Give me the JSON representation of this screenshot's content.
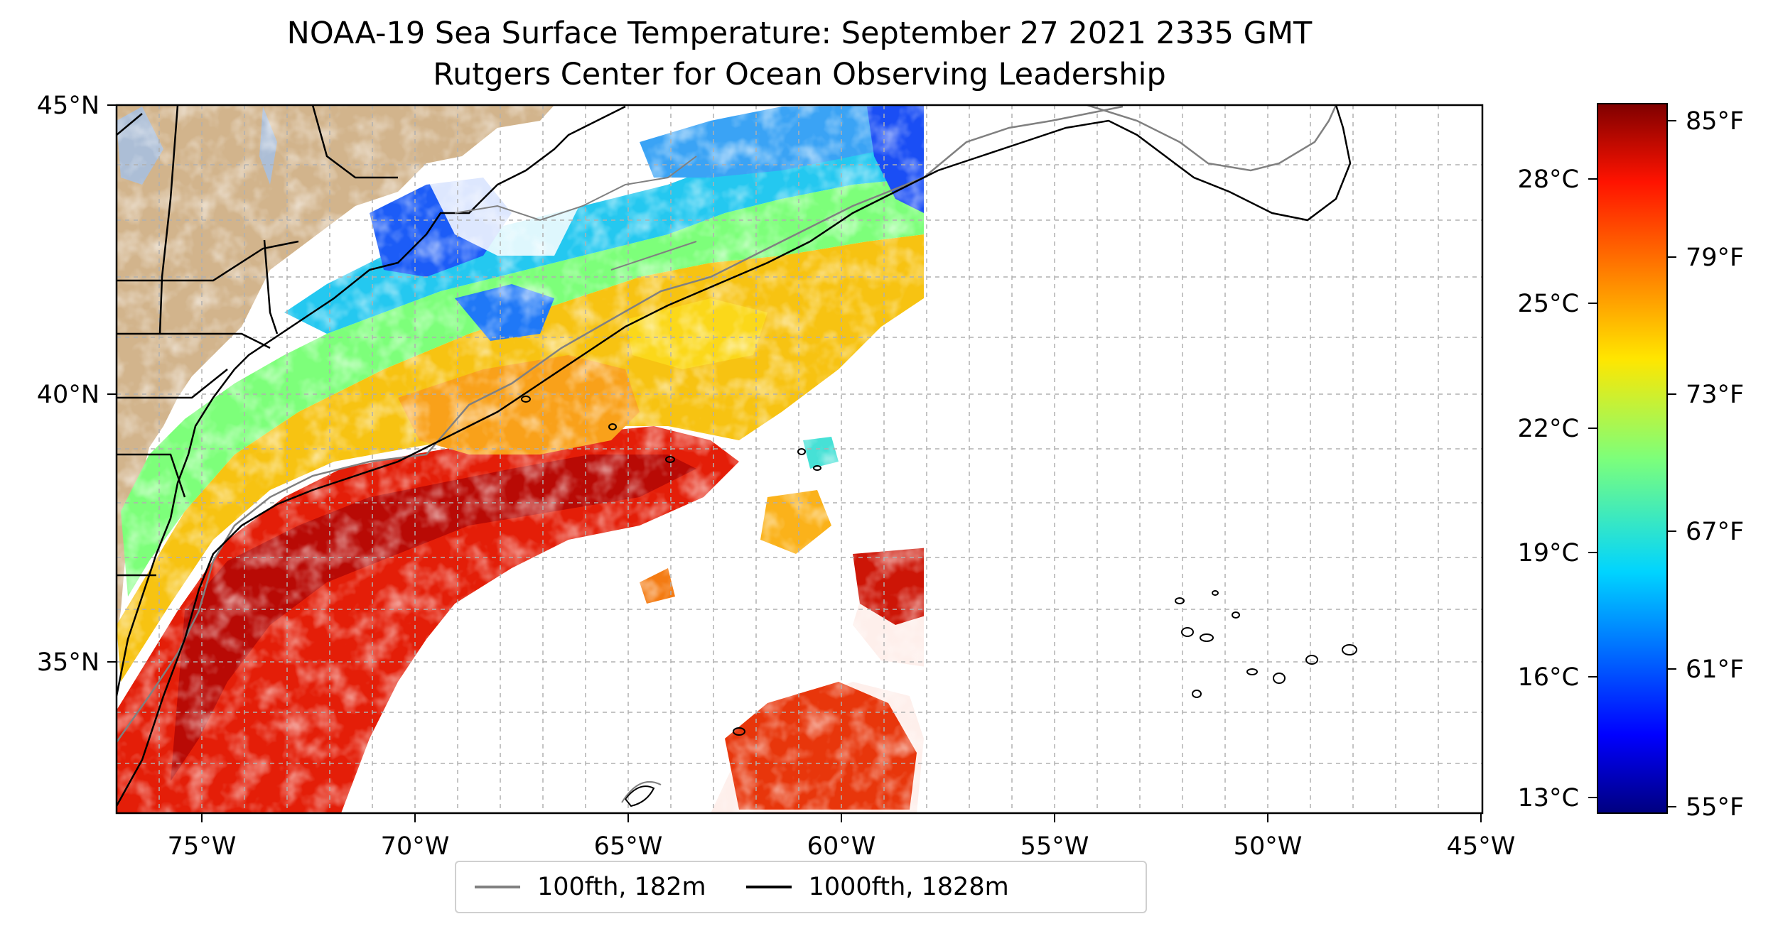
{
  "title": {
    "line1": "NOAA-19 Sea Surface Temperature: September 27 2021 2335 GMT",
    "line2": "Rutgers Center for Ocean Observing Leadership"
  },
  "map": {
    "lon_range": [
      -77,
      -45
    ],
    "lat_range": [
      32.2,
      45
    ],
    "lon_ticks": [
      "75°W",
      "70°W",
      "65°W",
      "60°W",
      "55°W",
      "50°W",
      "45°W"
    ],
    "lat_ticks": [
      "45°N",
      "40°N",
      "35°N"
    ],
    "land_color": "#d2b48c",
    "lake_color": "#a3c1e8",
    "gridlines": true
  },
  "colorbar": {
    "colormap": "jet",
    "celsius_labels": [
      "28°C",
      "25°C",
      "22°C",
      "19°C",
      "16°C",
      "13°C"
    ],
    "fahrenheit_labels": [
      "85°F",
      "79°F",
      "73°F",
      "67°F",
      "61°F",
      "55°F"
    ]
  },
  "legend": {
    "items": [
      {
        "label": "100fth, 182m",
        "color": "#808080"
      },
      {
        "label": "1000fth, 1828m",
        "color": "#000000"
      }
    ]
  }
}
